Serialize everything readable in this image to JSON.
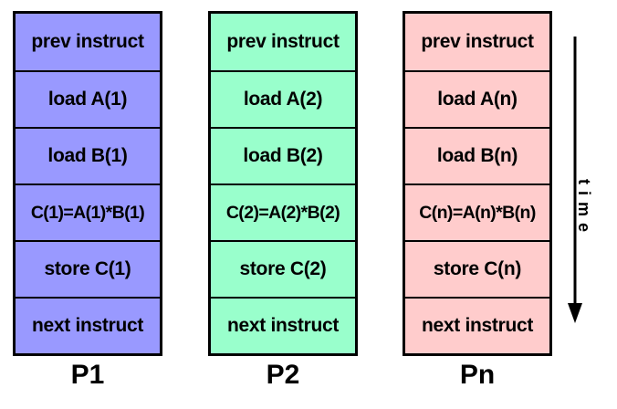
{
  "columns": [
    {
      "label": "P1",
      "color": "#9999ff",
      "cells": [
        "prev instruct",
        "load A(1)",
        "load B(1)",
        "C(1)=A(1)*B(1)",
        "store C(1)",
        "next instruct"
      ]
    },
    {
      "label": "P2",
      "color": "#99ffcc",
      "cells": [
        "prev instruct",
        "load A(2)",
        "load B(2)",
        "C(2)=A(2)*B(2)",
        "store C(2)",
        "next instruct"
      ]
    },
    {
      "label": "Pn",
      "color": "#ffcccc",
      "cells": [
        "prev instruct",
        "load A(n)",
        "load B(n)",
        "C(n)=A(n)*B(n)",
        "store C(n)",
        "next instruct"
      ]
    }
  ],
  "axis": {
    "label": "time"
  }
}
